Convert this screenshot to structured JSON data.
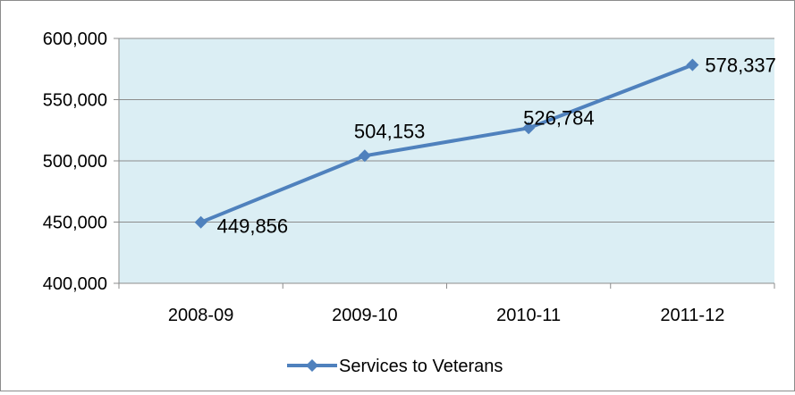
{
  "chart_data": {
    "type": "line",
    "categories": [
      "2008-09",
      "2009-10",
      "2010-11",
      "2011-12"
    ],
    "series": [
      {
        "name": "Services to Veterans",
        "values": [
          449856,
          504153,
          526784,
          578337
        ],
        "labels": [
          "449,856",
          "504,153",
          "526,784",
          "578,337"
        ],
        "color": "#4f81bd"
      }
    ],
    "yticks": [
      "400,000",
      "450,000",
      "500,000",
      "550,000",
      "600,000"
    ],
    "ylim": [
      400000,
      600000
    ],
    "grid": true,
    "plot_background": "#dbeef4",
    "legend_position": "bottom"
  }
}
